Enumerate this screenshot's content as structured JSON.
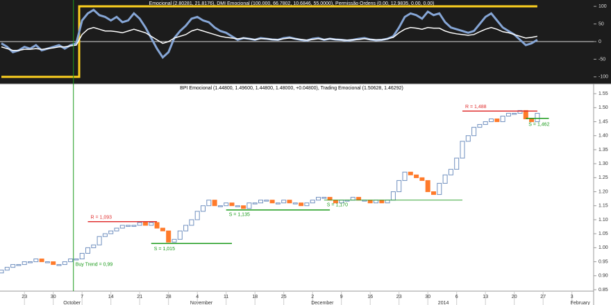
{
  "chart_data": [
    {
      "type": "line",
      "title": "Emocional (2.80281, 21.8176), DMI Emocional (100.000, 66.7802, 10.6846, 55.0000), Permissão Ordens (0.00, 12.9835, 0.00, 0.00)",
      "ylim": [
        -118,
        118
      ],
      "yticks": [
        100,
        50,
        0,
        -50,
        -100
      ],
      "series": [
        {
          "color": "#ffd21f",
          "width": 3,
          "values": [
            -100,
            -100,
            -100,
            -100,
            -100,
            -100,
            -100,
            -100,
            -100,
            -100,
            -100,
            -100,
            -100,
            -100,
            100,
            100,
            100,
            100,
            100,
            100,
            100,
            100,
            100,
            100,
            100,
            100,
            100,
            100,
            100,
            100,
            100,
            100,
            100,
            100,
            100,
            100,
            100,
            100,
            100,
            100,
            100,
            100,
            100,
            100,
            100,
            100,
            100,
            100,
            100,
            100,
            100,
            100,
            100,
            100,
            100,
            100,
            100,
            100,
            100,
            100,
            100,
            100,
            100,
            100,
            100,
            100,
            100,
            100,
            100,
            100,
            100,
            100,
            100,
            100,
            100,
            100,
            100,
            100,
            100,
            100,
            100,
            100,
            100,
            100,
            100,
            100,
            100,
            100,
            100,
            100,
            100,
            100,
            100,
            100,
            null,
            null,
            null,
            null,
            null,
            null,
            null
          ]
        },
        {
          "color": "#86a6d6",
          "width": 3,
          "values": [
            -5,
            -15,
            -30,
            -25,
            -15,
            -20,
            -10,
            -25,
            -20,
            -15,
            -10,
            -20,
            -10,
            -5,
            60,
            80,
            90,
            75,
            70,
            60,
            70,
            55,
            60,
            80,
            65,
            40,
            10,
            -20,
            -45,
            -30,
            10,
            30,
            45,
            65,
            70,
            60,
            55,
            40,
            30,
            25,
            15,
            5,
            10,
            8,
            5,
            10,
            8,
            6,
            5,
            10,
            12,
            8,
            5,
            3,
            8,
            10,
            5,
            8,
            6,
            5,
            3,
            5,
            8,
            10,
            6,
            4,
            5,
            8,
            15,
            40,
            70,
            80,
            75,
            65,
            85,
            75,
            80,
            55,
            40,
            35,
            30,
            25,
            30,
            50,
            70,
            80,
            60,
            40,
            30,
            20,
            5,
            -10,
            -5,
            5,
            null,
            null,
            null,
            null,
            null,
            null,
            null
          ]
        },
        {
          "color": "#ffffff",
          "width": 1.5,
          "values": [
            -15,
            -20,
            -25,
            -25,
            -22,
            -22,
            -20,
            -22,
            -20,
            -18,
            -15,
            -15,
            -12,
            -10,
            20,
            35,
            40,
            35,
            30,
            30,
            28,
            25,
            30,
            35,
            30,
            25,
            15,
            5,
            -5,
            0,
            10,
            15,
            20,
            30,
            35,
            30,
            25,
            20,
            15,
            12,
            10,
            8,
            10,
            8,
            6,
            8,
            8,
            6,
            5,
            8,
            10,
            8,
            6,
            4,
            6,
            8,
            6,
            8,
            6,
            5,
            4,
            5,
            6,
            8,
            6,
            5,
            5,
            8,
            12,
            25,
            35,
            40,
            38,
            35,
            40,
            38,
            38,
            30,
            25,
            22,
            20,
            18,
            20,
            28,
            35,
            40,
            35,
            28,
            25,
            20,
            15,
            10,
            12,
            15,
            null,
            null,
            null,
            null,
            null,
            null,
            null
          ]
        }
      ]
    },
    {
      "type": "candlestick",
      "title": "BPI Emocional (1.44800, 1.49600, 1.44800, 1.48000, +0.04800), Trading Emocional (1.50628, 1.46292)",
      "categories": [
        null,
        null,
        null,
        null,
        "23",
        null,
        null,
        null,
        null,
        "30",
        null,
        null,
        null,
        null,
        "7",
        null,
        null,
        null,
        null,
        "14",
        null,
        null,
        null,
        null,
        "21",
        null,
        null,
        null,
        null,
        "28",
        null,
        null,
        null,
        null,
        "4",
        null,
        null,
        null,
        null,
        "11",
        null,
        null,
        null,
        null,
        "18",
        null,
        null,
        null,
        null,
        "25",
        null,
        null,
        null,
        null,
        "2",
        null,
        null,
        null,
        null,
        "9",
        null,
        null,
        null,
        null,
        "16",
        null,
        null,
        null,
        null,
        "23",
        null,
        null,
        null,
        null,
        "30",
        null,
        null,
        null,
        null,
        "6",
        null,
        null,
        null,
        null,
        "13",
        null,
        null,
        null,
        null,
        "20",
        null,
        null,
        null,
        null,
        "27",
        null,
        null,
        null,
        null,
        "3",
        null
      ],
      "month_labels": [
        null,
        null,
        null,
        null,
        null,
        null,
        null,
        null,
        null,
        null,
        null,
        "October",
        null,
        null,
        null,
        null,
        null,
        null,
        null,
        null,
        null,
        null,
        null,
        null,
        null,
        null,
        null,
        null,
        null,
        null,
        null,
        null,
        null,
        "November",
        null,
        null,
        null,
        null,
        null,
        null,
        null,
        null,
        null,
        null,
        null,
        null,
        null,
        null,
        null,
        null,
        null,
        null,
        null,
        null,
        "December",
        null,
        null,
        null,
        null,
        null,
        null,
        null,
        null,
        null,
        null,
        null,
        null,
        null,
        null,
        null,
        null,
        null,
        null,
        null,
        null,
        null,
        "2014",
        null,
        null,
        null,
        null,
        null,
        null,
        null,
        null,
        null,
        null,
        null,
        null,
        null,
        null,
        null,
        null,
        null,
        null,
        null,
        null,
        null,
        null,
        "February",
        null
      ],
      "open": [
        0.91,
        0.92,
        0.93,
        0.94,
        0.94,
        0.95,
        0.95,
        0.96,
        0.95,
        0.95,
        0.94,
        0.94,
        0.95,
        0.96,
        0.96,
        0.98,
        1.0,
        1.01,
        1.04,
        1.05,
        1.06,
        1.07,
        1.08,
        1.08,
        1.08,
        1.09,
        1.08,
        1.09,
        1.07,
        1.06,
        1.02,
        1.03,
        1.06,
        1.08,
        1.1,
        1.13,
        1.15,
        1.17,
        1.15,
        1.15,
        1.16,
        1.15,
        1.15,
        1.14,
        1.16,
        1.16,
        1.17,
        1.17,
        1.16,
        1.16,
        1.17,
        1.16,
        1.16,
        1.15,
        1.16,
        1.17,
        1.18,
        1.18,
        1.17,
        1.16,
        1.17,
        1.17,
        1.18,
        1.17,
        1.17,
        1.16,
        1.17,
        1.16,
        1.17,
        1.2,
        1.24,
        1.27,
        1.26,
        1.25,
        1.24,
        1.2,
        1.19,
        1.23,
        1.26,
        1.28,
        1.32,
        1.38,
        1.4,
        1.43,
        1.44,
        1.45,
        1.46,
        1.45,
        1.47,
        1.48,
        1.48,
        1.49,
        1.46,
        1.45,
        null,
        null,
        null,
        null,
        null,
        null,
        null
      ],
      "close": [
        0.92,
        0.93,
        0.94,
        0.94,
        0.95,
        0.95,
        0.96,
        0.95,
        0.95,
        0.94,
        0.94,
        0.95,
        0.96,
        0.96,
        0.98,
        1.0,
        1.01,
        1.04,
        1.05,
        1.06,
        1.07,
        1.08,
        1.08,
        1.08,
        1.09,
        1.08,
        1.09,
        1.07,
        1.06,
        1.02,
        1.03,
        1.06,
        1.08,
        1.1,
        1.13,
        1.15,
        1.17,
        1.15,
        1.15,
        1.16,
        1.15,
        1.15,
        1.14,
        1.16,
        1.16,
        1.17,
        1.17,
        1.16,
        1.16,
        1.17,
        1.16,
        1.16,
        1.15,
        1.16,
        1.17,
        1.18,
        1.18,
        1.17,
        1.16,
        1.17,
        1.17,
        1.18,
        1.17,
        1.17,
        1.16,
        1.17,
        1.16,
        1.17,
        1.2,
        1.24,
        1.27,
        1.26,
        1.25,
        1.24,
        1.2,
        1.19,
        1.23,
        1.26,
        1.28,
        1.32,
        1.38,
        1.4,
        1.43,
        1.44,
        1.45,
        1.46,
        1.45,
        1.47,
        1.48,
        1.48,
        1.49,
        1.46,
        1.45,
        1.48,
        null,
        null,
        null,
        null,
        null,
        null,
        null
      ],
      "up_color": "#6f8fbf",
      "down_color": "#ff7a2a",
      "ylim": [
        0.845,
        1.585
      ],
      "yticks": [
        1.55,
        {
          "value": 1.5,
          "label": "1.50"
        },
        1.45,
        {
          "value": 1.4,
          "label": "1.40"
        },
        1.35,
        {
          "value": 1.3,
          "label": "1.30"
        },
        1.25,
        {
          "value": 1.2,
          "label": "1.20"
        },
        1.15,
        {
          "value": 1.1,
          "label": "1.10"
        },
        1.05,
        {
          "value": 1,
          "label": "1.00"
        },
        0.95,
        {
          "value": 0.9,
          "label": "0.90"
        },
        0.85
      ],
      "levels": [
        {
          "label": "R = 1,093",
          "value": 1.093,
          "color": "#e03030"
        },
        {
          "label": "S = 1,015",
          "value": 1.015,
          "color": "#1a9a1a"
        },
        {
          "label": "S = 1,135",
          "value": 1.135,
          "color": "#1a9a1a"
        },
        {
          "label": "S = 1,170",
          "value": 1.17,
          "color": "#1a9a1a"
        },
        {
          "label": "R = 1,488",
          "value": 1.488,
          "color": "#e03030"
        },
        {
          "label": "S = 1,462",
          "value": 1.462,
          "color": "#1a9a1a"
        }
      ],
      "buy_trend": {
        "label": "Buy Trend = 0,99",
        "value": 0.99,
        "color": "#1a9a1a"
      }
    }
  ]
}
